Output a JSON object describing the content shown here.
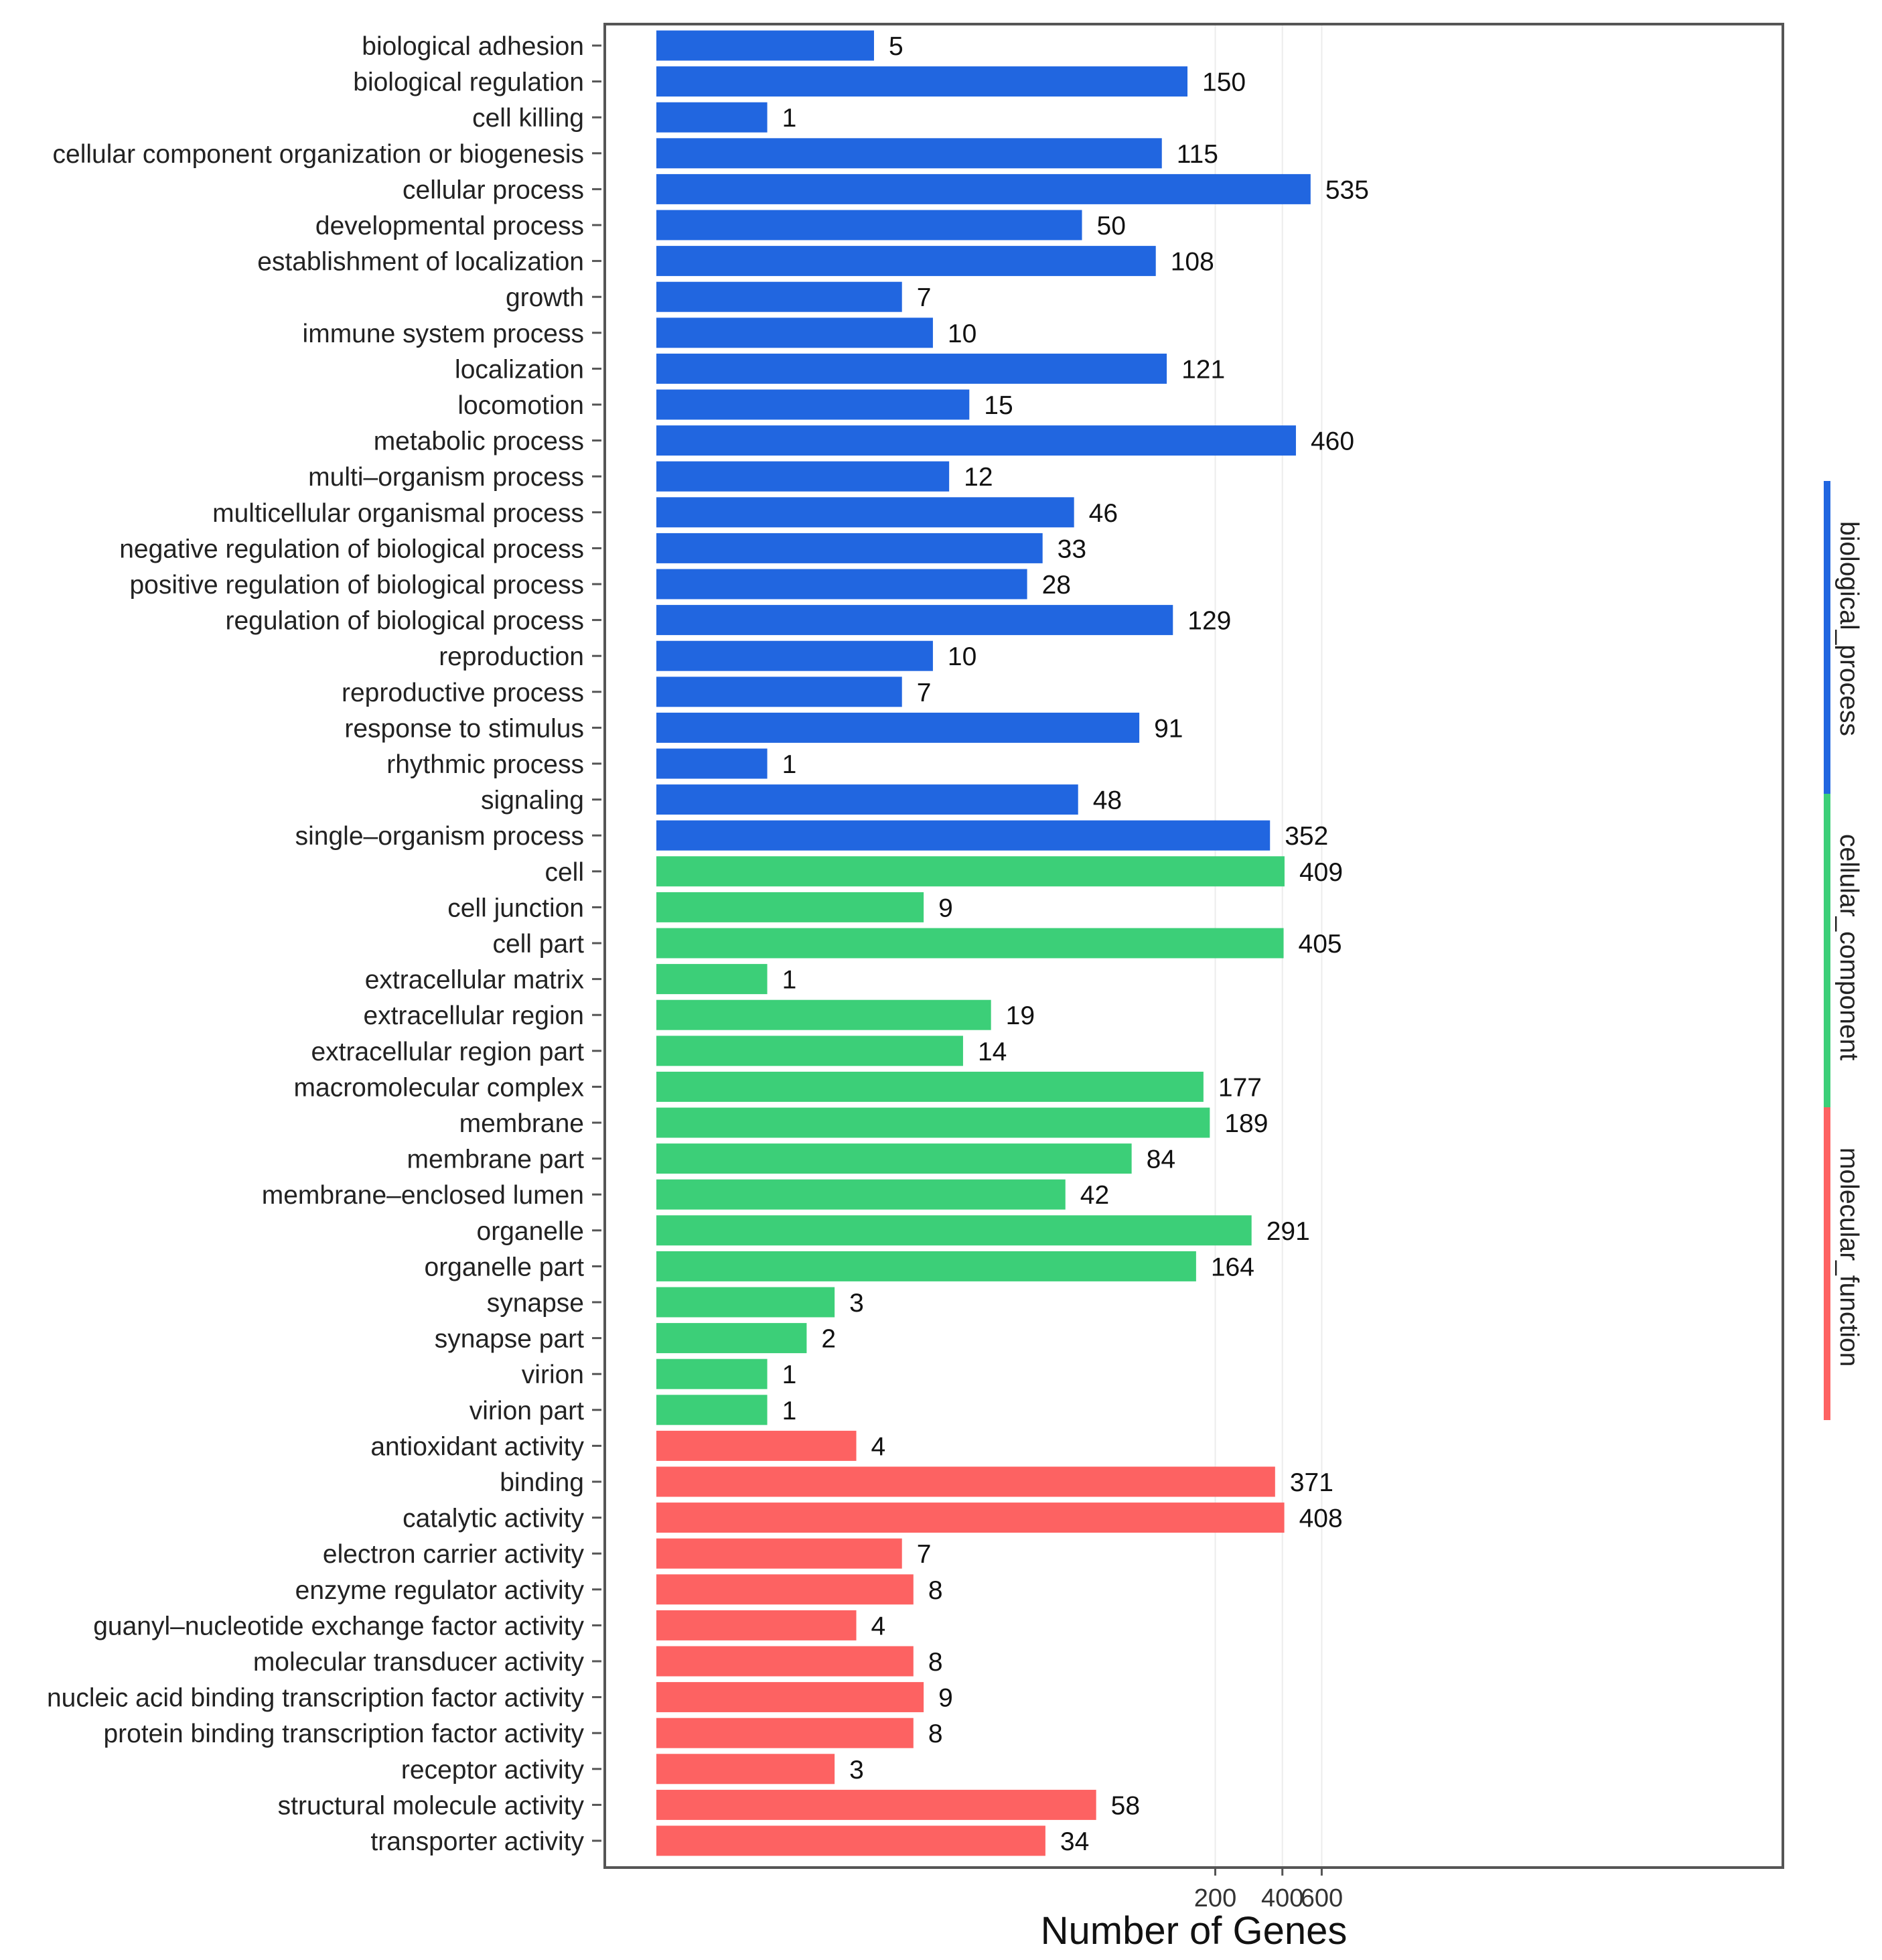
{
  "chart_data": {
    "type": "bar",
    "orientation": "horizontal",
    "xlabel": "Number of Genes",
    "ylabel": "",
    "xscale": "log",
    "xticks": [
      200,
      400,
      600
    ],
    "grid": true,
    "legend_position": "right",
    "groups": [
      {
        "name": "biological_process",
        "color": "#2166e0"
      },
      {
        "name": "cellular_component",
        "color": "#3ccf78"
      },
      {
        "name": "molecular_function",
        "color": "#fd6262"
      }
    ],
    "categories": [
      {
        "label": "biological adhesion",
        "value": 5,
        "group": "biological_process"
      },
      {
        "label": "biological regulation",
        "value": 150,
        "group": "biological_process"
      },
      {
        "label": "cell killing",
        "value": 1,
        "group": "biological_process"
      },
      {
        "label": "cellular component organization or biogenesis",
        "value": 115,
        "group": "biological_process"
      },
      {
        "label": "cellular process",
        "value": 535,
        "group": "biological_process"
      },
      {
        "label": "developmental process",
        "value": 50,
        "group": "biological_process"
      },
      {
        "label": "establishment of localization",
        "value": 108,
        "group": "biological_process"
      },
      {
        "label": "growth",
        "value": 7,
        "group": "biological_process"
      },
      {
        "label": "immune system process",
        "value": 10,
        "group": "biological_process"
      },
      {
        "label": "localization",
        "value": 121,
        "group": "biological_process"
      },
      {
        "label": "locomotion",
        "value": 15,
        "group": "biological_process"
      },
      {
        "label": "metabolic process",
        "value": 460,
        "group": "biological_process"
      },
      {
        "label": "multi–organism process",
        "value": 12,
        "group": "biological_process"
      },
      {
        "label": "multicellular organismal process",
        "value": 46,
        "group": "biological_process"
      },
      {
        "label": "negative regulation of biological process",
        "value": 33,
        "group": "biological_process"
      },
      {
        "label": "positive regulation of biological process",
        "value": 28,
        "group": "biological_process"
      },
      {
        "label": "regulation of biological process",
        "value": 129,
        "group": "biological_process"
      },
      {
        "label": "reproduction",
        "value": 10,
        "group": "biological_process"
      },
      {
        "label": "reproductive process",
        "value": 7,
        "group": "biological_process"
      },
      {
        "label": "response to stimulus",
        "value": 91,
        "group": "biological_process"
      },
      {
        "label": "rhythmic process",
        "value": 1,
        "group": "biological_process"
      },
      {
        "label": "signaling",
        "value": 48,
        "group": "biological_process"
      },
      {
        "label": "single–organism process",
        "value": 352,
        "group": "biological_process"
      },
      {
        "label": "cell",
        "value": 409,
        "group": "cellular_component"
      },
      {
        "label": "cell junction",
        "value": 9,
        "group": "cellular_component"
      },
      {
        "label": "cell part",
        "value": 405,
        "group": "cellular_component"
      },
      {
        "label": "extracellular matrix",
        "value": 1,
        "group": "cellular_component"
      },
      {
        "label": "extracellular region",
        "value": 19,
        "group": "cellular_component"
      },
      {
        "label": "extracellular region part",
        "value": 14,
        "group": "cellular_component"
      },
      {
        "label": "macromolecular complex",
        "value": 177,
        "group": "cellular_component"
      },
      {
        "label": "membrane",
        "value": 189,
        "group": "cellular_component"
      },
      {
        "label": "membrane part",
        "value": 84,
        "group": "cellular_component"
      },
      {
        "label": "membrane–enclosed lumen",
        "value": 42,
        "group": "cellular_component"
      },
      {
        "label": "organelle",
        "value": 291,
        "group": "cellular_component"
      },
      {
        "label": "organelle part",
        "value": 164,
        "group": "cellular_component"
      },
      {
        "label": "synapse",
        "value": 3,
        "group": "cellular_component"
      },
      {
        "label": "synapse part",
        "value": 2,
        "group": "cellular_component"
      },
      {
        "label": "virion",
        "value": 1,
        "group": "cellular_component"
      },
      {
        "label": "virion part",
        "value": 1,
        "group": "cellular_component"
      },
      {
        "label": "antioxidant activity",
        "value": 4,
        "group": "molecular_function"
      },
      {
        "label": "binding",
        "value": 371,
        "group": "molecular_function"
      },
      {
        "label": "catalytic activity",
        "value": 408,
        "group": "molecular_function"
      },
      {
        "label": "electron carrier activity",
        "value": 7,
        "group": "molecular_function"
      },
      {
        "label": "enzyme regulator activity",
        "value": 8,
        "group": "molecular_function"
      },
      {
        "label": "guanyl–nucleotide exchange factor activity",
        "value": 4,
        "group": "molecular_function"
      },
      {
        "label": "molecular transducer activity",
        "value": 8,
        "group": "molecular_function"
      },
      {
        "label": "nucleic acid binding transcription factor activity",
        "value": 9,
        "group": "molecular_function"
      },
      {
        "label": "protein binding transcription factor activity",
        "value": 8,
        "group": "molecular_function"
      },
      {
        "label": "receptor activity",
        "value": 3,
        "group": "molecular_function"
      },
      {
        "label": "structural molecule activity",
        "value": 58,
        "group": "molecular_function"
      },
      {
        "label": "transporter activity",
        "value": 34,
        "group": "molecular_function"
      }
    ]
  }
}
